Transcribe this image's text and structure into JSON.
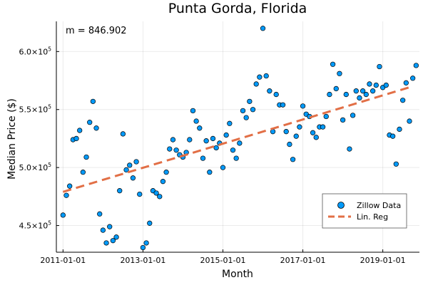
{
  "chart_data": {
    "type": "scatter",
    "title": "Punta Gorda, Florida",
    "xlabel": "Month",
    "ylabel": "Median Price ($)",
    "annotation": "m = 846.902",
    "x_tick_labels": [
      "2011-01-01",
      "2013-01-01",
      "2015-01-01",
      "2017-01-01",
      "2019-01-01"
    ],
    "y_ticks": [
      {
        "mantissa": "4.5",
        "exp": "5"
      },
      {
        "mantissa": "5.0",
        "exp": "5"
      },
      {
        "mantissa": "5.5",
        "exp": "5"
      },
      {
        "mantissa": "6.0",
        "exp": "5"
      }
    ],
    "x_range": [
      "2010-11-01",
      "2019-12-01"
    ],
    "y_range": [
      427000,
      626000
    ],
    "grid": true,
    "legend_position": "bottom-right",
    "colors": {
      "scatter": "#009AFA",
      "regression": "#E26F46"
    },
    "series": [
      {
        "name": "Zillow Data",
        "kind": "scatter",
        "x": [
          "2011-01",
          "2011-02",
          "2011-03",
          "2011-04",
          "2011-05",
          "2011-06",
          "2011-07",
          "2011-08",
          "2011-09",
          "2011-10",
          "2011-11",
          "2011-12",
          "2012-01",
          "2012-02",
          "2012-03",
          "2012-04",
          "2012-05",
          "2012-06",
          "2012-07",
          "2012-08",
          "2012-09",
          "2012-10",
          "2012-11",
          "2012-12",
          "2013-01",
          "2013-02",
          "2013-03",
          "2013-04",
          "2013-05",
          "2013-06",
          "2013-07",
          "2013-08",
          "2013-09",
          "2013-10",
          "2013-11",
          "2013-12",
          "2014-01",
          "2014-02",
          "2014-03",
          "2014-04",
          "2014-05",
          "2014-06",
          "2014-07",
          "2014-08",
          "2014-09",
          "2014-10",
          "2014-11",
          "2014-12",
          "2015-01",
          "2015-02",
          "2015-03",
          "2015-04",
          "2015-05",
          "2015-06",
          "2015-07",
          "2015-08",
          "2015-09",
          "2015-10",
          "2015-11",
          "2015-12",
          "2016-01",
          "2016-02",
          "2016-03",
          "2016-04",
          "2016-05",
          "2016-06",
          "2016-07",
          "2016-08",
          "2016-09",
          "2016-10",
          "2016-11",
          "2016-12",
          "2017-01",
          "2017-02",
          "2017-03",
          "2017-04",
          "2017-05",
          "2017-06",
          "2017-07",
          "2017-08",
          "2017-09",
          "2017-10",
          "2017-11",
          "2017-12",
          "2018-01",
          "2018-02",
          "2018-03",
          "2018-04",
          "2018-05",
          "2018-06",
          "2018-07",
          "2018-08",
          "2018-09",
          "2018-10",
          "2018-11",
          "2018-12",
          "2019-01",
          "2019-02",
          "2019-03",
          "2019-04",
          "2019-05",
          "2019-06",
          "2019-07",
          "2019-08",
          "2019-09",
          "2019-10",
          "2019-11"
        ],
        "y": [
          459000,
          476000,
          484000,
          524000,
          525000,
          532000,
          496000,
          509000,
          539000,
          557000,
          534000,
          460000,
          446000,
          435000,
          449000,
          437000,
          440000,
          480000,
          529000,
          498000,
          502000,
          491000,
          505000,
          477000,
          431000,
          435000,
          452000,
          480000,
          478000,
          475000,
          488000,
          496000,
          516000,
          524000,
          515000,
          511000,
          509000,
          513000,
          524000,
          549000,
          540000,
          534000,
          508000,
          523000,
          496000,
          525000,
          517000,
          521000,
          500000,
          528000,
          538000,
          515000,
          508000,
          521000,
          549000,
          543000,
          557000,
          550000,
          572000,
          578000,
          620000,
          579000,
          566000,
          531000,
          563000,
          554000,
          554000,
          531000,
          520000,
          507000,
          527000,
          535000,
          553000,
          546000,
          544000,
          530000,
          526000,
          535000,
          535000,
          544000,
          563000,
          589000,
          568000,
          581000,
          541000,
          563000,
          516000,
          545000,
          566000,
          560000,
          566000,
          563000,
          572000,
          566000,
          571000,
          587000,
          569000,
          571000,
          528000,
          527000,
          503000,
          533000,
          558000,
          573000,
          540000,
          577000,
          588000
        ]
      },
      {
        "name": "Lin. Reg",
        "kind": "line",
        "x": [
          "2011-01",
          "2019-10"
        ],
        "y": [
          479000,
          570000
        ]
      }
    ]
  }
}
